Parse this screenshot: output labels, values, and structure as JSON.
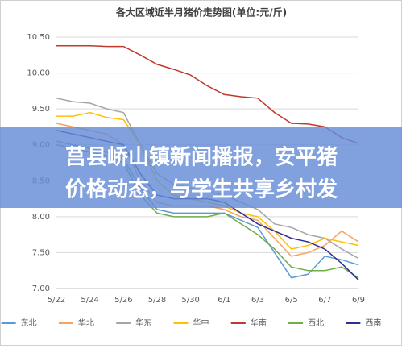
{
  "chart_data": {
    "type": "line",
    "title": "各大区域近半月猪价走势图(单位:元/斤)",
    "categories": [
      "5/22",
      null,
      "5/24",
      null,
      "5/26",
      null,
      "5/28",
      null,
      "5/30",
      null,
      "6/1",
      null,
      "6/3",
      null,
      "6/5",
      null,
      "6/7",
      null,
      "6/9"
    ],
    "series": [
      {
        "name": "东北",
        "color": "#5b9bd5",
        "values": [
          9.05,
          9.0,
          8.95,
          8.9,
          8.8,
          8.4,
          8.1,
          8.05,
          8.05,
          8.05,
          8.05,
          7.95,
          7.85,
          7.5,
          7.15,
          7.2,
          7.45,
          7.4,
          7.33
        ]
      },
      {
        "name": "华北",
        "color": "#f4a460",
        "values": [
          9.3,
          9.25,
          9.2,
          9.15,
          9.0,
          8.5,
          8.2,
          8.15,
          8.15,
          8.15,
          8.1,
          8.0,
          7.95,
          7.7,
          7.45,
          7.5,
          7.6,
          7.8,
          7.65
        ]
      },
      {
        "name": "华东",
        "color": "#a5a5a5",
        "values": [
          9.65,
          9.6,
          9.58,
          9.5,
          9.45,
          9.0,
          8.6,
          8.45,
          8.4,
          8.35,
          8.3,
          8.2,
          8.1,
          7.9,
          7.85,
          7.75,
          7.7,
          7.55,
          7.42
        ]
      },
      {
        "name": "华中",
        "color": "#ffc000",
        "values": [
          9.4,
          9.4,
          9.45,
          9.38,
          9.35,
          9.0,
          8.5,
          8.3,
          8.25,
          8.2,
          8.15,
          8.05,
          8.0,
          7.8,
          7.55,
          7.6,
          7.7,
          7.65,
          7.6
        ]
      },
      {
        "name": "华南",
        "color": "#c0392b",
        "values": [
          10.38,
          10.38,
          10.38,
          10.37,
          10.37,
          10.25,
          10.12,
          10.05,
          9.97,
          9.82,
          9.7,
          9.67,
          9.65,
          9.45,
          9.3,
          9.29,
          9.25,
          9.1,
          9.02
        ]
      },
      {
        "name": "西北",
        "color": "#70ad47",
        "values": [
          9.0,
          8.95,
          8.9,
          8.85,
          8.75,
          8.3,
          8.05,
          8.0,
          8.0,
          8.0,
          8.05,
          7.9,
          7.75,
          7.55,
          7.3,
          7.25,
          7.25,
          7.3,
          7.15
        ]
      },
      {
        "name": "西南",
        "color": "#2e3192",
        "values": [
          9.2,
          9.15,
          9.1,
          9.05,
          9.0,
          8.6,
          8.3,
          8.25,
          8.25,
          8.25,
          8.2,
          8.05,
          7.9,
          7.8,
          7.7,
          7.65,
          7.55,
          7.35,
          7.12
        ]
      }
    ],
    "ylim": [
      7,
      10.5
    ],
    "yticks": [
      {
        "value": 7,
        "label": "7.00"
      },
      {
        "value": 7.5,
        "label": "7.50"
      },
      {
        "value": 8,
        "label": "8.00"
      },
      {
        "value": 8.5,
        "label": "8.50"
      },
      {
        "value": 9,
        "label": "9.00"
      },
      {
        "value": 9.5,
        "label": "9.50"
      },
      {
        "value": 10,
        "label": "10.00"
      },
      {
        "value": 10.5,
        "label": "10.50"
      }
    ],
    "grid": true
  },
  "banner": {
    "lines": [
      "莒县峤山镇新闻播报，安平猪",
      "价格动态，与学生共享乡村发"
    ]
  }
}
